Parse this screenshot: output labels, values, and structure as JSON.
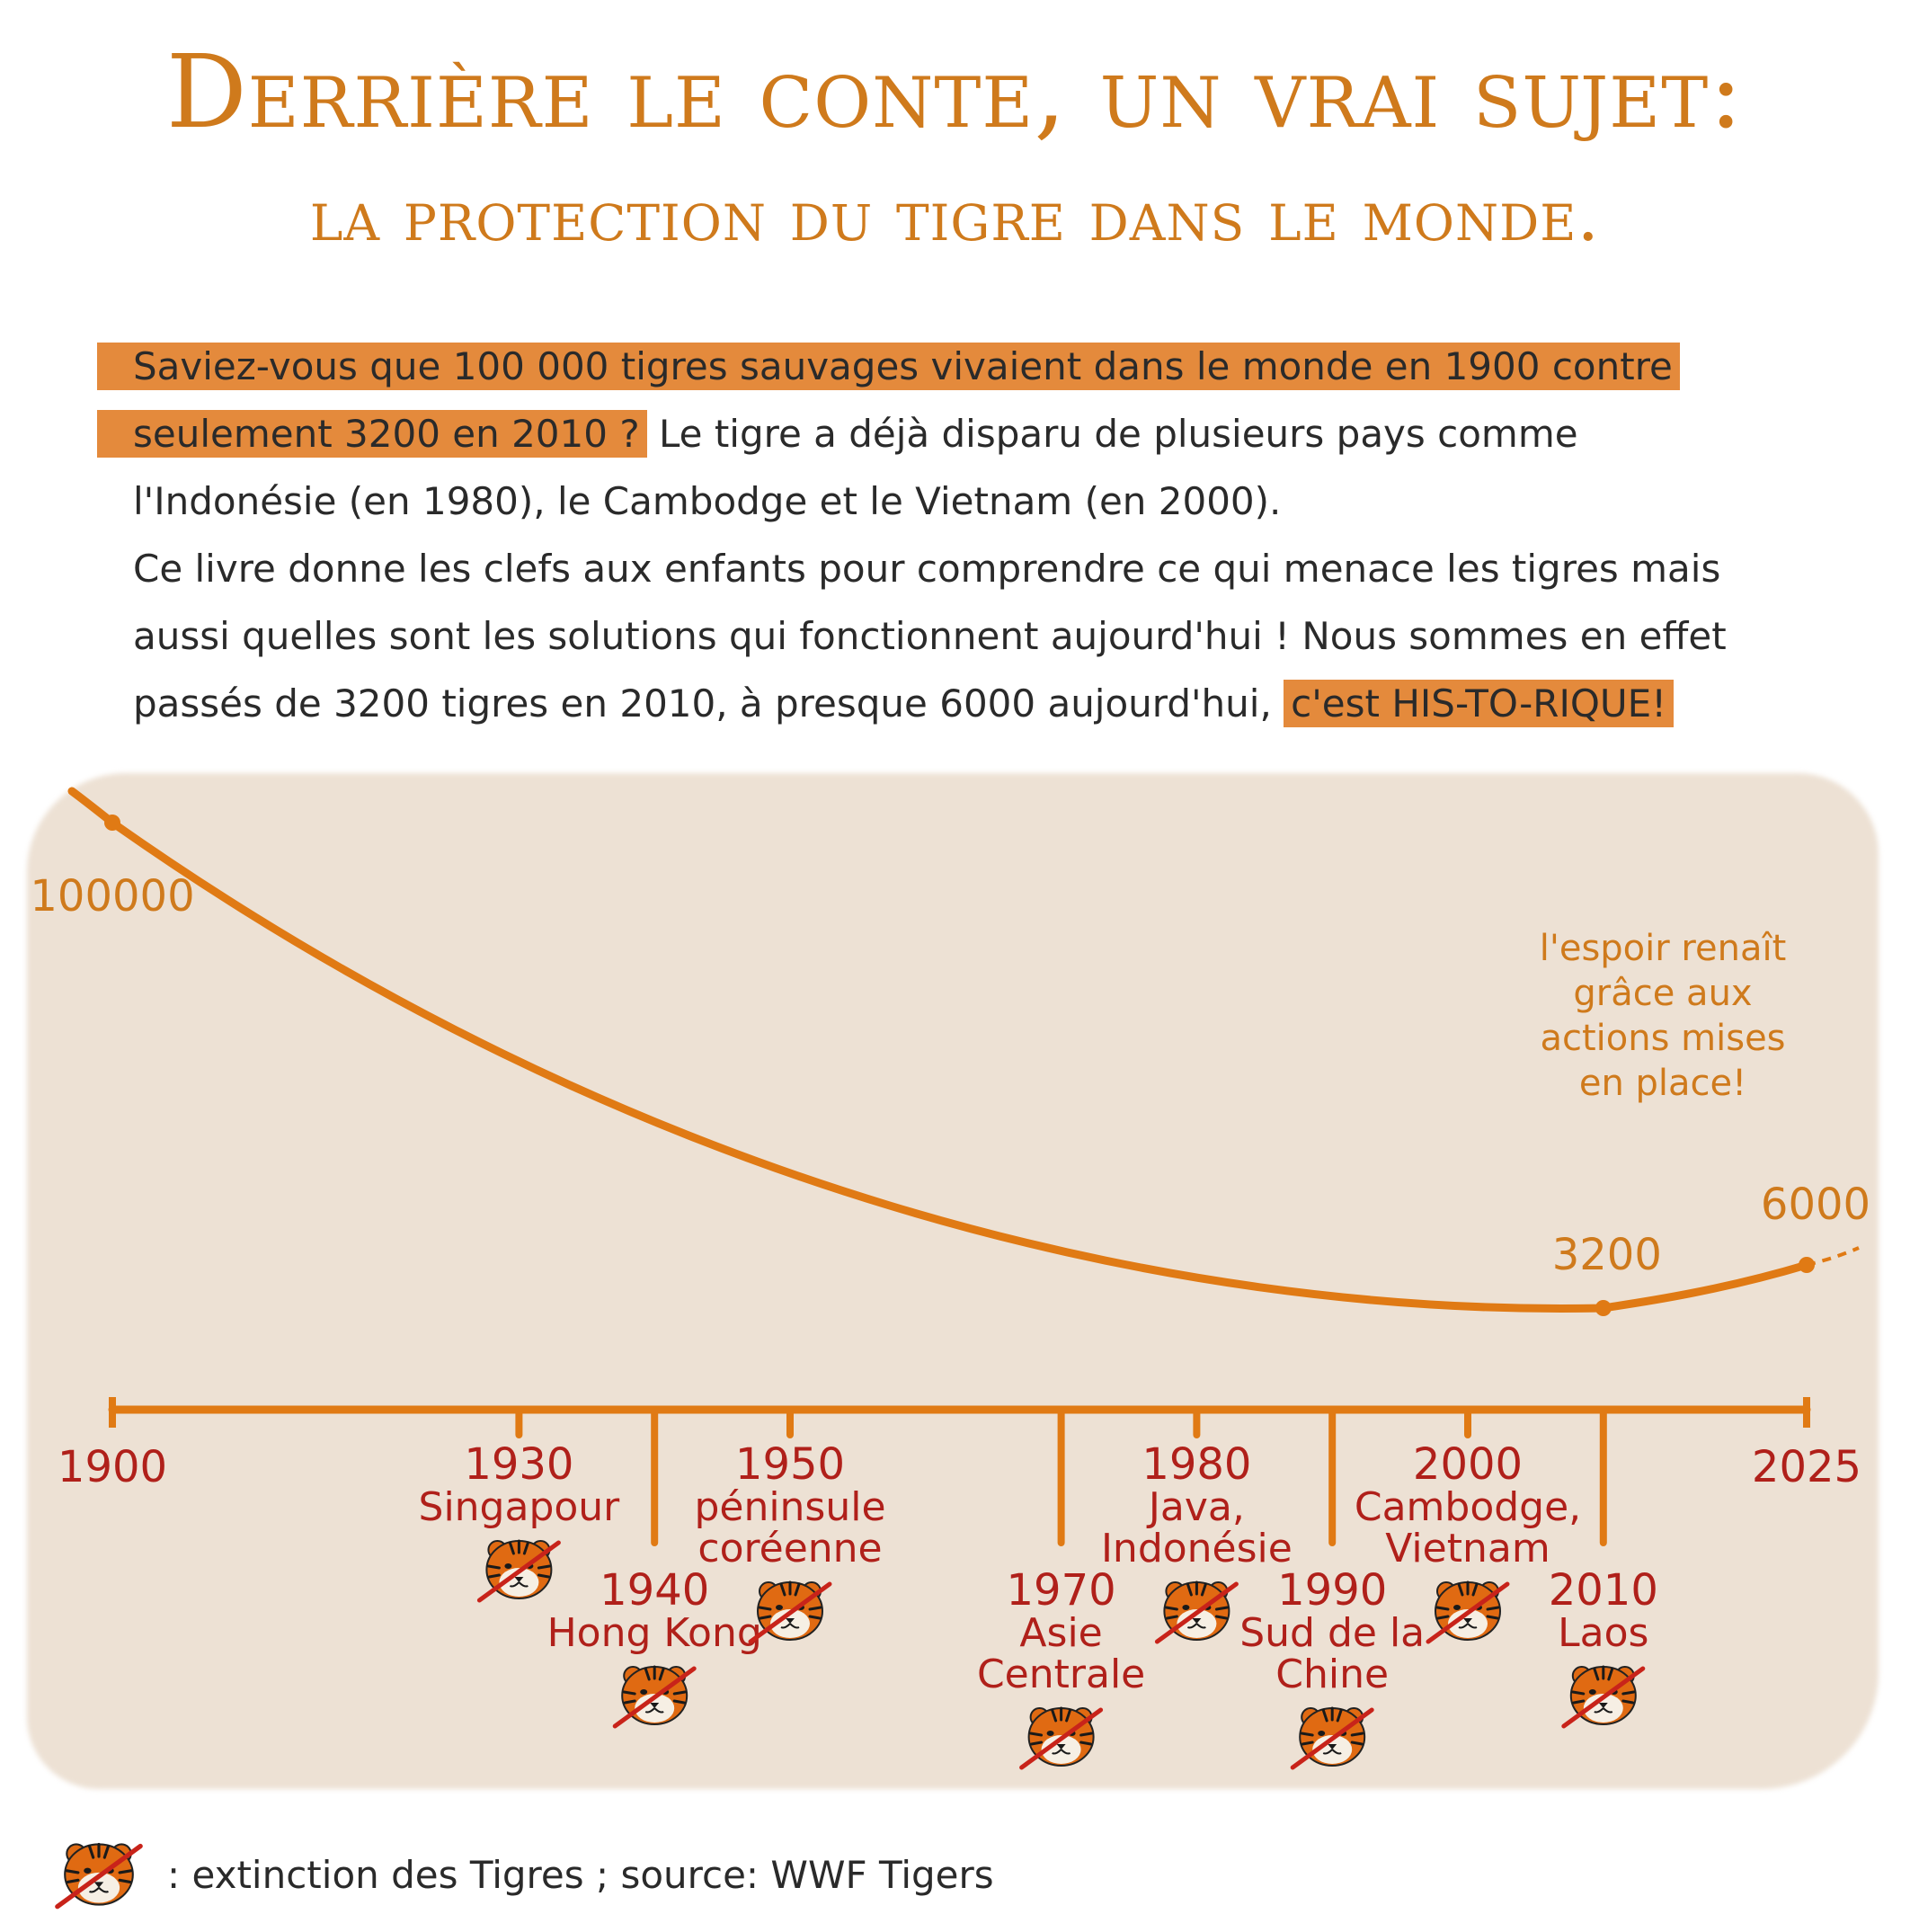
{
  "title": {
    "line1": "Derrière le conte, un vrai sujet:",
    "line2": "la protection du tigre dans le monde."
  },
  "intro": {
    "line1_highlight": "Saviez-vous que 100 000 tigres sauvages vivaient dans le monde en 1900 contre",
    "line2_highlight": "seulement 3200 en 2010 ?",
    "line2_rest": " Le tigre a déjà disparu de plusieurs pays comme",
    "line3": "l'Indonésie (en 1980), le Cambodge et le Vietnam (en 2000).",
    "line4": "Ce livre donne les clefs aux enfants pour comprendre ce qui menace les tigres mais",
    "line5": "aussi quelles sont les solutions qui fonctionnent aujourd'hui ! Nous sommes en effet",
    "line6_start": "passés de 3200 tigres en 2010, à presque 6000 aujourd'hui, ",
    "line6_highlight": "c'est HIS-TO-RIQUE!"
  },
  "chart_data": {
    "type": "line",
    "x": [
      1900,
      2010,
      2025
    ],
    "values": [
      100000,
      3200,
      6000
    ],
    "point_labels": [
      "100000",
      "3200",
      "6000"
    ],
    "annotation": "l'espoir renaît grâce aux actions mises en place!",
    "annotation_lines": [
      "l'espoir renaît",
      "grâce aux",
      "actions mises",
      "en place!"
    ],
    "timeline": {
      "start": "1900",
      "end": "2025",
      "events": [
        {
          "year": "1930",
          "place": [
            "Singapour"
          ],
          "year_num": 1930,
          "long": false
        },
        {
          "year": "1940",
          "place": [
            "Hong Kong"
          ],
          "year_num": 1940,
          "long": true
        },
        {
          "year": "1950",
          "place": [
            "péninsule",
            "coréenne"
          ],
          "year_num": 1950,
          "long": false
        },
        {
          "year": "1970",
          "place": [
            "Asie",
            "Centrale"
          ],
          "year_num": 1970,
          "long": true
        },
        {
          "year": "1980",
          "place": [
            "Java,",
            "Indonésie"
          ],
          "year_num": 1980,
          "long": false
        },
        {
          "year": "1990",
          "place": [
            "Sud de la",
            "Chine"
          ],
          "year_num": 1990,
          "long": true
        },
        {
          "year": "2000",
          "place": [
            "Cambodge,",
            "Vietnam"
          ],
          "year_num": 2000,
          "long": false
        },
        {
          "year": "2010",
          "place": [
            "Laos"
          ],
          "year_num": 2010,
          "long": true
        }
      ]
    }
  },
  "legend": {
    "text": ": extinction des Tigres ; source: WWF Tigers"
  },
  "colors": {
    "orange": "#cf7a1c",
    "line_orange": "#e07a14",
    "red": "#b0201a",
    "highlight": "#e48a3c",
    "panel": "#ede1d4"
  },
  "icons": {
    "extinct": "crossed-tiger-icon"
  }
}
